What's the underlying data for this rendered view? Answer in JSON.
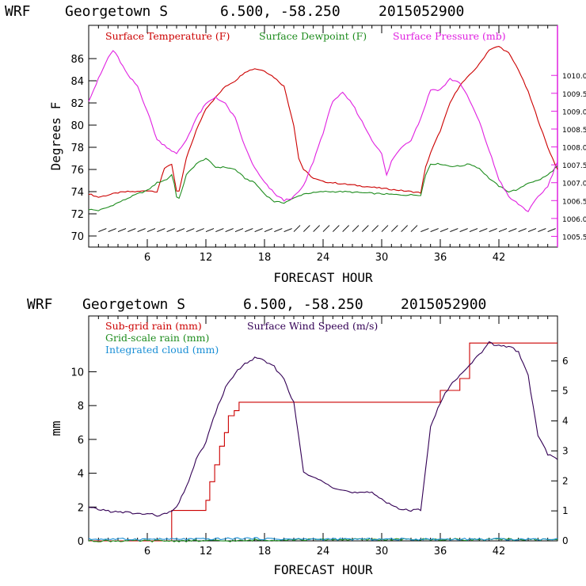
{
  "chart_data": [
    {
      "type": "line",
      "header": {
        "model": "WRF",
        "location": "Georgetown S",
        "coords": "6.500, -58.250",
        "init": "2015052900"
      },
      "xlabel": "FORECAST HOUR",
      "ylabel": "Degrees F",
      "xlim": [
        0,
        48
      ],
      "xticks": [
        "6",
        "12",
        "18",
        "24",
        "30",
        "36",
        "42"
      ],
      "ylim": [
        69,
        89
      ],
      "yticks": [
        "70",
        "72",
        "74",
        "76",
        "78",
        "80",
        "82",
        "84",
        "86"
      ],
      "ylim_right": [
        1005.2,
        1011.4
      ],
      "yticks_right": [
        "1005.5",
        "1006.0",
        "1006.5",
        "1007.0",
        "1007.5",
        "1008.0",
        "1008.5",
        "1009.0",
        "1009.5",
        "1010.0"
      ],
      "grid": false,
      "legend_position": "top-left",
      "colors": {
        "temp": "#cc0000",
        "dew": "#1e8c1e",
        "pres": "#e020e0",
        "wind": "#000000"
      },
      "series": [
        {
          "name": "Surface Temperature (F)",
          "color": "#cc0000",
          "axis": "left",
          "x": [
            0,
            1,
            2,
            3,
            4,
            5,
            6,
            7,
            7.8,
            8.5,
            9,
            9.2,
            10,
            11,
            12,
            13,
            14,
            15,
            16,
            17,
            18,
            19,
            20,
            21,
            21.5,
            22,
            23,
            24,
            26,
            28,
            30,
            32,
            34,
            34.5,
            35,
            36,
            37,
            38,
            39,
            40,
            41,
            42,
            43,
            44,
            45,
            46,
            47,
            48
          ],
          "y": [
            73.8,
            73.5,
            73.7,
            73.9,
            74.0,
            74.0,
            74.1,
            74.0,
            76.2,
            76.5,
            74.0,
            73.8,
            77.0,
            79.5,
            81.5,
            82.5,
            83.5,
            84.0,
            84.8,
            85.1,
            84.9,
            84.3,
            83.5,
            80.0,
            77.0,
            76.0,
            75.2,
            74.9,
            74.7,
            74.5,
            74.3,
            74.1,
            73.9,
            76.2,
            77.5,
            79.5,
            82.0,
            83.6,
            84.5,
            85.5,
            86.8,
            87.1,
            86.5,
            85.0,
            83.0,
            80.5,
            78.0,
            76.0
          ]
        },
        {
          "name": "Surface Dewpoint (F)",
          "color": "#1e8c1e",
          "axis": "left",
          "x": [
            0,
            1,
            2,
            3,
            4,
            5,
            6,
            7,
            8,
            8.6,
            9,
            9.2,
            10,
            11,
            12,
            13,
            14,
            15,
            16,
            17,
            18,
            19,
            20,
            21,
            22,
            24,
            26,
            28,
            30,
            32,
            34,
            34.5,
            35,
            36,
            37,
            38,
            39,
            40,
            41,
            42,
            43,
            44,
            45,
            46,
            47,
            48
          ],
          "y": [
            72.4,
            72.3,
            72.6,
            73.0,
            73.4,
            73.8,
            74.1,
            74.8,
            75.1,
            75.6,
            73.5,
            73.2,
            75.5,
            76.5,
            77.0,
            76.2,
            76.2,
            76.0,
            75.2,
            74.8,
            73.8,
            73.1,
            73.0,
            73.4,
            73.8,
            74.0,
            74.0,
            73.9,
            73.8,
            73.7,
            73.7,
            75.5,
            76.5,
            76.5,
            76.3,
            76.3,
            76.5,
            76.1,
            75.2,
            74.5,
            74.0,
            74.2,
            74.8,
            75.0,
            75.5,
            76.3
          ]
        },
        {
          "name": "Surface Pressure (mb)",
          "color": "#e020e0",
          "axis": "right",
          "x": [
            0,
            1,
            2,
            2.5,
            3,
            4,
            5,
            6,
            7,
            8,
            9,
            10,
            11,
            12,
            13,
            14,
            15,
            16,
            17,
            18,
            19,
            20,
            21,
            22,
            23,
            24,
            25,
            26,
            27,
            28,
            29,
            30,
            30.5,
            31,
            32,
            33,
            34,
            35,
            36,
            37,
            38,
            39,
            40,
            41,
            42,
            43,
            44,
            45,
            46,
            47,
            48
          ],
          "y": [
            1009.3,
            1009.9,
            1010.5,
            1010.7,
            1010.5,
            1010.0,
            1009.7,
            1009.0,
            1008.2,
            1008.0,
            1007.8,
            1008.2,
            1008.8,
            1009.2,
            1009.4,
            1009.2,
            1008.8,
            1008.0,
            1007.4,
            1007.0,
            1006.7,
            1006.5,
            1006.6,
            1006.9,
            1007.6,
            1008.4,
            1009.3,
            1009.5,
            1009.2,
            1008.7,
            1008.2,
            1007.8,
            1007.2,
            1007.6,
            1008.0,
            1008.2,
            1008.8,
            1009.6,
            1009.6,
            1009.9,
            1009.8,
            1009.3,
            1008.7,
            1007.9,
            1007.1,
            1006.6,
            1006.4,
            1006.2,
            1006.6,
            1006.9,
            1007.6
          ]
        }
      ]
    },
    {
      "type": "line",
      "header": {
        "model": "WRF",
        "location": "Georgetown S",
        "coords": "6.500, -58.250",
        "init": "2015052900"
      },
      "xlabel": "FORECAST HOUR",
      "ylabel": "mm",
      "xlim": [
        0,
        48
      ],
      "xticks": [
        "6",
        "12",
        "18",
        "24",
        "30",
        "36",
        "42"
      ],
      "ylim": [
        0,
        13.3
      ],
      "yticks": [
        "0",
        "2",
        "4",
        "6",
        "8",
        "10"
      ],
      "ylim_right": [
        0,
        7.5
      ],
      "yticks_right": [
        "0",
        "1",
        "2",
        "3",
        "4",
        "5",
        "6"
      ],
      "grid": false,
      "legend_position": "top-left",
      "colors": {
        "subgrid": "#cc0000",
        "gridscale": "#1e8c1e",
        "cloud": "#1a8fd6",
        "wind": "#330055"
      },
      "series": [
        {
          "name": "Sub-grid rain (mm)",
          "color": "#cc0000",
          "axis": "left",
          "step": true,
          "x": [
            0,
            8.4,
            8.5,
            11.9,
            12.0,
            12.4,
            12.9,
            13.4,
            13.9,
            14.3,
            14.9,
            15.4,
            35.9,
            36.0,
            37.9,
            38.0,
            38.9,
            39.0,
            48
          ],
          "y": [
            0,
            0,
            1.8,
            1.8,
            2.4,
            3.5,
            4.5,
            5.6,
            6.4,
            7.4,
            7.7,
            8.2,
            8.2,
            8.9,
            8.9,
            9.6,
            9.6,
            11.7,
            11.7
          ]
        },
        {
          "name": "Grid-scale rain (mm)",
          "color": "#1e8c1e",
          "axis": "left",
          "x": [
            0,
            16,
            17,
            24,
            48
          ],
          "y": [
            0,
            0,
            0.05,
            0.08,
            0.08
          ]
        },
        {
          "name": "Integrated cloud (mm)",
          "color": "#1a8fd6",
          "axis": "left",
          "x": [
            0,
            8,
            12,
            16,
            20,
            24,
            30,
            36,
            42,
            48
          ],
          "y": [
            0.1,
            0.1,
            0.1,
            0.15,
            0.1,
            0.1,
            0.1,
            0.1,
            0.1,
            0.1
          ]
        },
        {
          "name": "Surface Wind Speed (m/s)",
          "color": "#330055",
          "axis": "right",
          "x": [
            0,
            1,
            2,
            3,
            4,
            5,
            6,
            7,
            8,
            9,
            10,
            11,
            12,
            13,
            14,
            15,
            16,
            17,
            18,
            19,
            20,
            21,
            22,
            23,
            24,
            25,
            26,
            27,
            28,
            29,
            30,
            31,
            32,
            33,
            34,
            35,
            36,
            37,
            38,
            39,
            40,
            41,
            42,
            43,
            44,
            45,
            46,
            47,
            48
          ],
          "y": [
            1.1,
            1.05,
            1.0,
            0.95,
            0.95,
            0.9,
            0.9,
            0.85,
            0.9,
            1.1,
            1.8,
            2.7,
            3.3,
            4.3,
            5.1,
            5.6,
            5.9,
            6.1,
            6.0,
            5.8,
            5.4,
            4.6,
            2.3,
            2.1,
            2.0,
            1.8,
            1.7,
            1.6,
            1.6,
            1.6,
            1.4,
            1.2,
            1.05,
            1.0,
            1.05,
            3.8,
            4.6,
            5.2,
            5.5,
            5.9,
            6.2,
            6.6,
            6.5,
            6.5,
            6.3,
            5.5,
            3.5,
            2.9,
            2.7
          ]
        }
      ]
    }
  ]
}
